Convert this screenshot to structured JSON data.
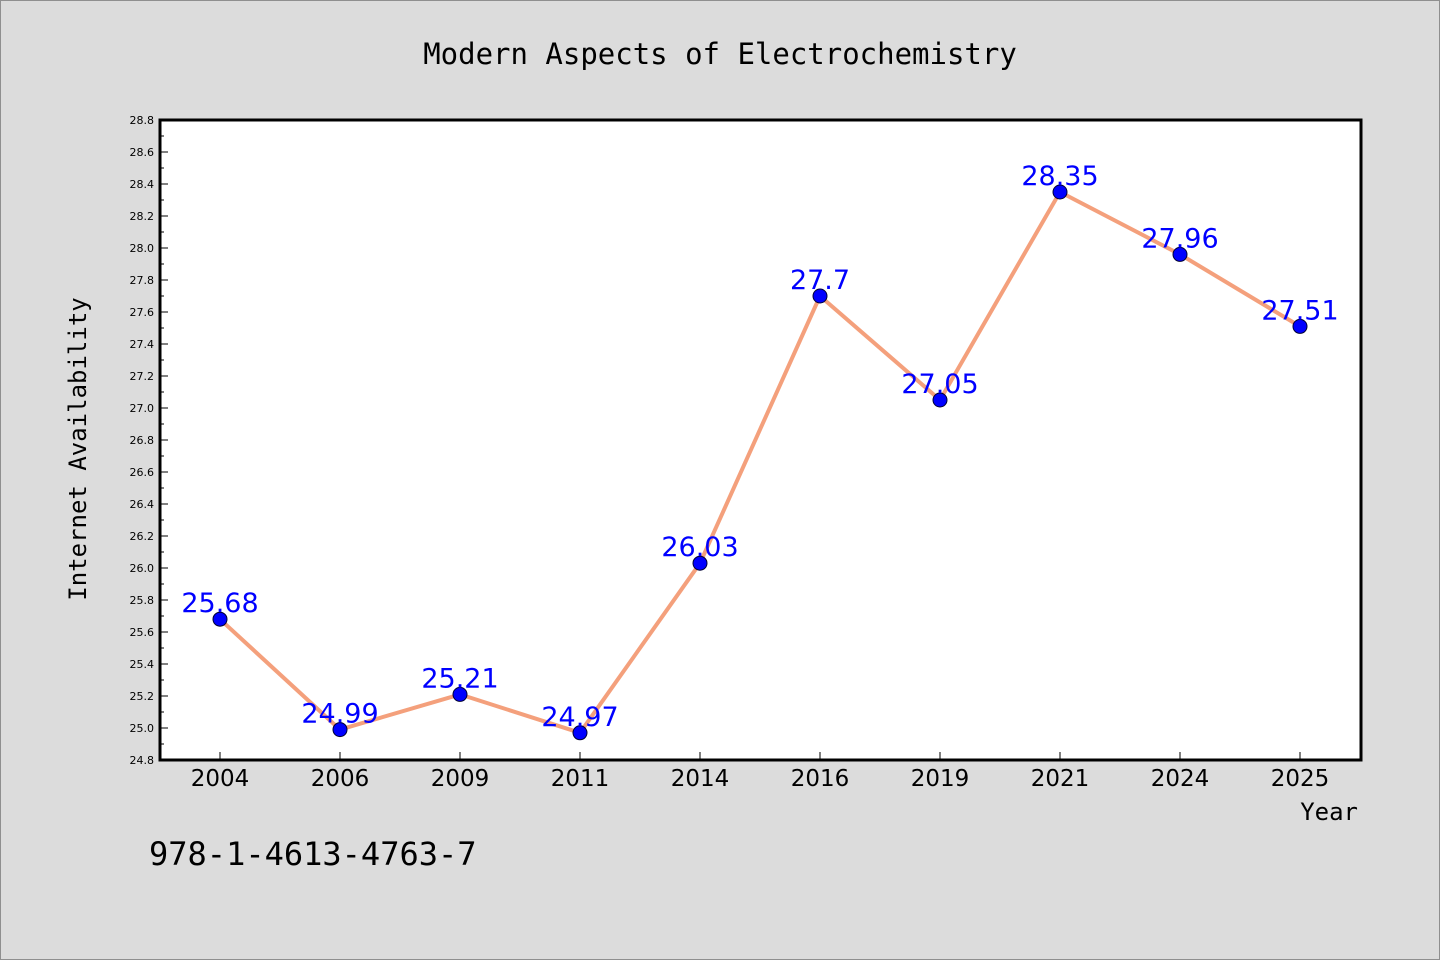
{
  "chart_data": {
    "type": "line",
    "title": "Modern Aspects of Electrochemistry",
    "xlabel": "Year",
    "ylabel": "Internet Availability",
    "categories": [
      "2004",
      "2006",
      "2009",
      "2011",
      "2014",
      "2016",
      "2019",
      "2021",
      "2024",
      "2025"
    ],
    "series": [
      {
        "values": [
          25.68,
          24.99,
          25.21,
          24.97,
          26.03,
          27.7,
          27.05,
          28.35,
          27.96,
          27.51
        ],
        "labels": [
          "25.68",
          "24.99",
          "25.21",
          "24.97",
          "26.03",
          "27.7",
          "27.05",
          "28.35",
          "27.96",
          "27.51"
        ],
        "line_color": "#f4a07c",
        "marker_color": "#0000ff",
        "label_color": "#0000ff"
      }
    ],
    "ylim": [
      24.8,
      28.8
    ],
    "yticks": [
      "24.8",
      "25.0",
      "25.2",
      "25.4",
      "25.6",
      "25.8",
      "26.0",
      "26.2",
      "26.4",
      "26.6",
      "26.8",
      "27.0",
      "27.2",
      "27.4",
      "27.6",
      "27.8",
      "28.0",
      "28.2",
      "28.4",
      "28.6",
      "28.8"
    ],
    "grid": false,
    "legend": "none"
  },
  "footer_text": "978-1-4613-4763-7",
  "colors": {
    "background": "#dcdcdc",
    "plot_background": "#ffffff",
    "axis": "#000000"
  }
}
